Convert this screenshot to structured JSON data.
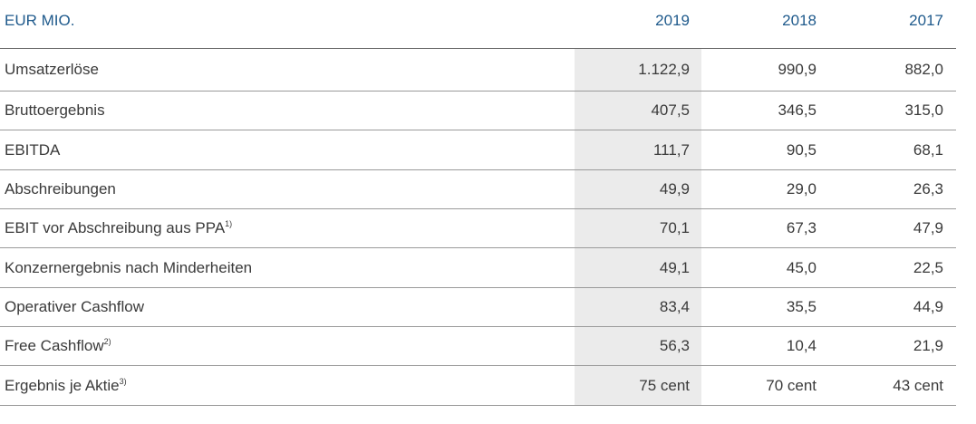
{
  "header": {
    "label": "EUR MIO.",
    "years": [
      "2019",
      "2018",
      "2017"
    ]
  },
  "rows": [
    {
      "label": "Umsatzerlöse",
      "note": "",
      "values": [
        "1.122,9",
        "990,9",
        "882,0"
      ]
    },
    {
      "label": "Bruttoergebnis",
      "note": "",
      "values": [
        "407,5",
        "346,5",
        "315,0"
      ]
    },
    {
      "label": "EBITDA",
      "note": "",
      "values": [
        "111,7",
        "90,5",
        "68,1"
      ]
    },
    {
      "label": "Abschreibungen",
      "note": "",
      "values": [
        "49,9",
        "29,0",
        "26,3"
      ]
    },
    {
      "label": "EBIT vor Abschreibung aus PPA",
      "note": "1)",
      "values": [
        "70,1",
        "67,3",
        "47,9"
      ]
    },
    {
      "label": "Konzernergebnis nach Minderheiten",
      "note": "",
      "values": [
        "49,1",
        "45,0",
        "22,5"
      ]
    },
    {
      "label": "Operativer Cashflow",
      "note": "",
      "values": [
        "83,4",
        "35,5",
        "44,9"
      ]
    },
    {
      "label": "Free Cashflow",
      "note": "2)",
      "values": [
        "56,3",
        "10,4",
        "21,9"
      ]
    },
    {
      "label": "Ergebnis je Aktie",
      "note": "3)",
      "values": [
        "75 cent",
        "70 cent",
        "43 cent"
      ]
    }
  ],
  "colors": {
    "header_text": "#1f5a8c",
    "highlight_column": "#ebebeb",
    "body_text": "#3a3a3a"
  }
}
